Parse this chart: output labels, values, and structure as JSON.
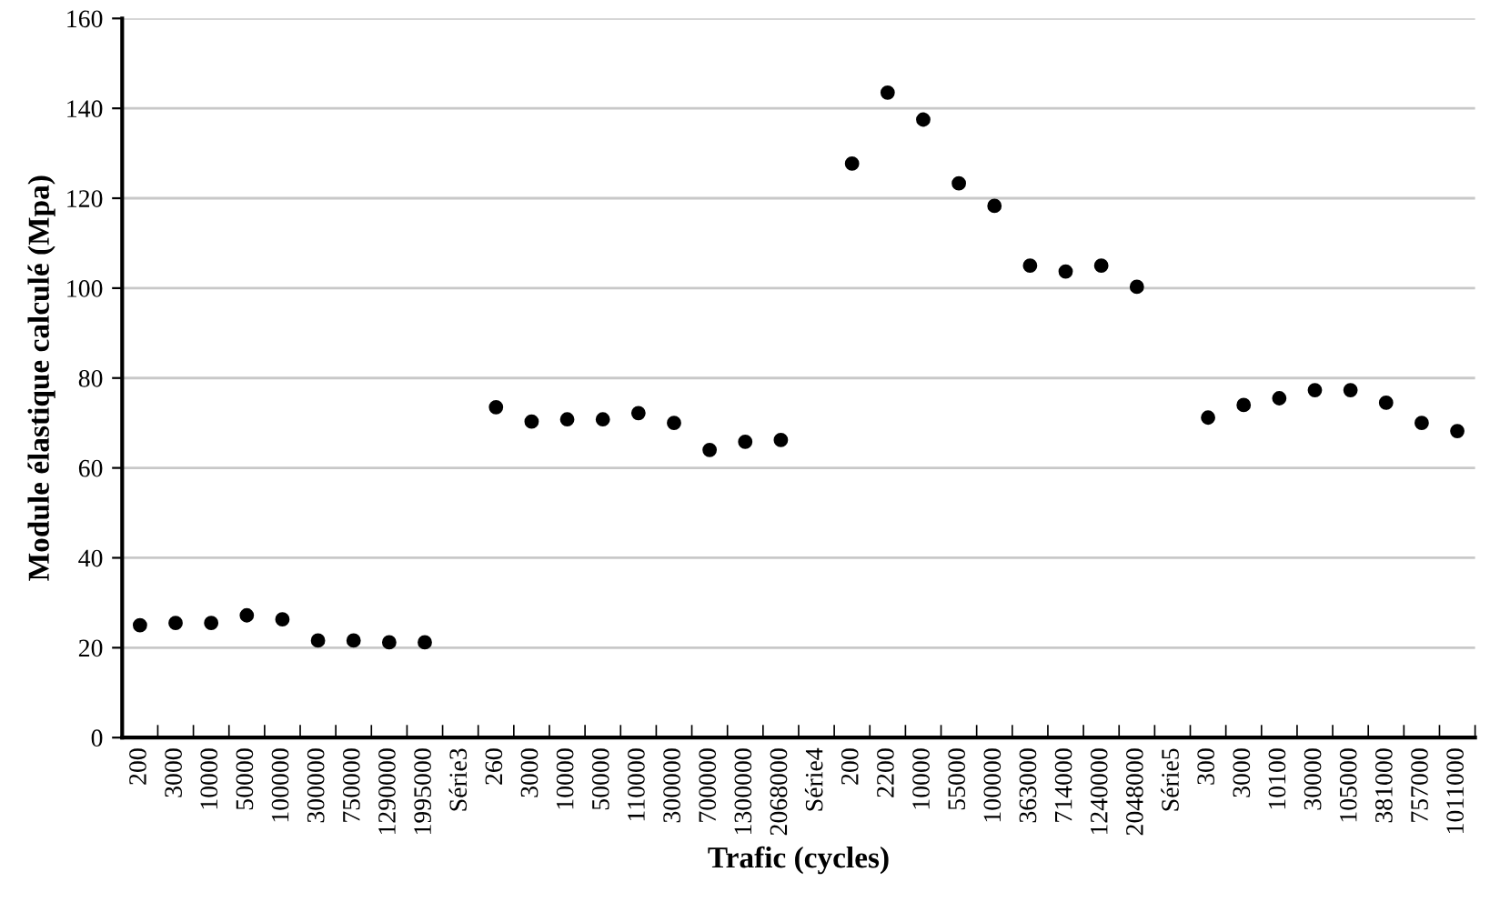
{
  "chart_data": {
    "type": "scatter",
    "xlabel": "Trafic (cycles)",
    "ylabel": "Module élastique calculé (Mpa)",
    "categories": [
      "200",
      "3000",
      "10000",
      "50000",
      "100000",
      "300000",
      "750000",
      "1290000",
      "1995000",
      "Série3",
      "260",
      "3000",
      "10000",
      "50000",
      "110000",
      "300000",
      "700000",
      "1300000",
      "2068000",
      "Série4",
      "200",
      "2200",
      "10000",
      "55000",
      "100000",
      "363000",
      "714000",
      "1240000",
      "2048000",
      "Série5",
      "300",
      "3000",
      "10100",
      "30000",
      "105000",
      "381000",
      "757000",
      "1011000"
    ],
    "series": [
      {
        "color": "#000000",
        "values": [
          25,
          25.5,
          25.5,
          27.2,
          26.3,
          21.6,
          21.6,
          21.2,
          21.2,
          null,
          73.5,
          70.3,
          70.8,
          70.8,
          72.2,
          70,
          64,
          65.8,
          66.2,
          null,
          127.7,
          143.5,
          137.5,
          123.3,
          118.3,
          105,
          103.7,
          105,
          100.3,
          null,
          71.2,
          74,
          75.5,
          77.3,
          77.3,
          74.5,
          70,
          68.2
        ]
      }
    ],
    "ylim": [
      0,
      160
    ],
    "yticks": [
      0,
      20,
      40,
      60,
      80,
      100,
      120,
      140,
      160
    ],
    "grid": "y",
    "marker": "circle",
    "legend": false
  }
}
